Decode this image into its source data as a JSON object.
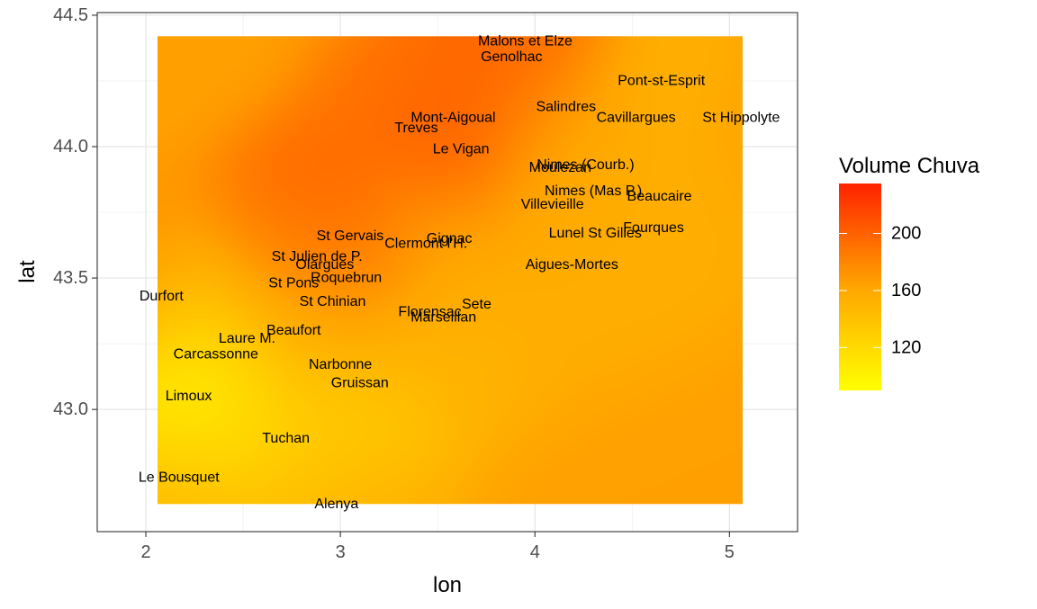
{
  "chart_data": {
    "type": "heatmap",
    "title": "",
    "xlabel": "lon",
    "ylabel": "lat",
    "xlim": [
      1.75,
      5.35
    ],
    "ylim": [
      42.535,
      44.51
    ],
    "x_ticks": [
      2,
      3,
      4,
      5
    ],
    "y_ticks": [
      43.0,
      43.5,
      44.0,
      44.5
    ],
    "x_tick_labels": [
      "2",
      "3",
      "4",
      "5"
    ],
    "y_tick_labels": [
      "43.0",
      "43.5",
      "44.0",
      "44.5"
    ],
    "grid": true,
    "surface_extent": {
      "lon": [
        2.06,
        5.07
      ],
      "lat": [
        42.64,
        44.42
      ]
    },
    "legend": {
      "title": "Volume Chuva",
      "placement": "right",
      "range": [
        90,
        235
      ],
      "ticks": [
        120,
        160,
        200
      ],
      "tick_labels": [
        "120",
        "160",
        "200"
      ],
      "colors": [
        "#ffff00",
        "#ffa500",
        "#ff2200"
      ]
    },
    "background_value": 165,
    "stations": [
      {
        "name": "Malons et Elze",
        "lon": 3.95,
        "lat": 44.4,
        "value": 195
      },
      {
        "name": "Genolhac",
        "lon": 3.88,
        "lat": 44.34,
        "value": 205
      },
      {
        "name": "Pont-st-Esprit",
        "lon": 4.65,
        "lat": 44.25,
        "value": 150
      },
      {
        "name": "Salindres",
        "lon": 4.16,
        "lat": 44.15,
        "value": 175
      },
      {
        "name": "Mont-Aigoual",
        "lon": 3.58,
        "lat": 44.11,
        "value": 190
      },
      {
        "name": "Cavillargues",
        "lon": 4.52,
        "lat": 44.11,
        "value": 150
      },
      {
        "name": "St Hippolyte",
        "lon": 5.06,
        "lat": 44.11,
        "value": 165
      },
      {
        "name": "Treves",
        "lon": 3.39,
        "lat": 44.07,
        "value": 190
      },
      {
        "name": "Le Vigan",
        "lon": 3.62,
        "lat": 43.99,
        "value": 225
      },
      {
        "name": "Nimes (Courb.)",
        "lon": 4.26,
        "lat": 43.93,
        "value": 160
      },
      {
        "name": "Moulezan",
        "lon": 4.13,
        "lat": 43.92,
        "value": 160
      },
      {
        "name": "Nimes (Mas P.)",
        "lon": 4.3,
        "lat": 43.83,
        "value": 155
      },
      {
        "name": "Beaucaire",
        "lon": 4.64,
        "lat": 43.81,
        "value": 155
      },
      {
        "name": "Villevieille",
        "lon": 4.09,
        "lat": 43.78,
        "value": 160
      },
      {
        "name": "Fourques",
        "lon": 4.61,
        "lat": 43.69,
        "value": 155
      },
      {
        "name": "St Gervais",
        "lon": 3.05,
        "lat": 43.66,
        "value": 215
      },
      {
        "name": "Lunel St Gilles",
        "lon": 4.31,
        "lat": 43.67,
        "value": 155
      },
      {
        "name": "Gignac",
        "lon": 3.56,
        "lat": 43.65,
        "value": 160
      },
      {
        "name": "Clermont l'H.",
        "lon": 3.44,
        "lat": 43.63,
        "value": 165
      },
      {
        "name": "St Julien de P.",
        "lon": 2.88,
        "lat": 43.58,
        "value": 195
      },
      {
        "name": "Olargues",
        "lon": 2.92,
        "lat": 43.55,
        "value": 190
      },
      {
        "name": "Aigues-Mortes",
        "lon": 4.19,
        "lat": 43.55,
        "value": 155
      },
      {
        "name": "Roquebrun",
        "lon": 3.03,
        "lat": 43.5,
        "value": 180
      },
      {
        "name": "St Pons",
        "lon": 2.76,
        "lat": 43.48,
        "value": 185
      },
      {
        "name": "Durfort",
        "lon": 2.08,
        "lat": 43.43,
        "value": 175
      },
      {
        "name": "St Chinian",
        "lon": 2.96,
        "lat": 43.41,
        "value": 165
      },
      {
        "name": "Sete",
        "lon": 3.7,
        "lat": 43.4,
        "value": 155
      },
      {
        "name": "Florensac",
        "lon": 3.46,
        "lat": 43.37,
        "value": 150
      },
      {
        "name": "Marseillan",
        "lon": 3.53,
        "lat": 43.35,
        "value": 150
      },
      {
        "name": "Beaufort",
        "lon": 2.76,
        "lat": 43.3,
        "value": 140
      },
      {
        "name": "Laure M.",
        "lon": 2.52,
        "lat": 43.27,
        "value": 115
      },
      {
        "name": "Carcassonne",
        "lon": 2.36,
        "lat": 43.21,
        "value": 105
      },
      {
        "name": "Narbonne",
        "lon": 3.0,
        "lat": 43.17,
        "value": 130
      },
      {
        "name": "Gruissan",
        "lon": 3.1,
        "lat": 43.1,
        "value": 135
      },
      {
        "name": "Limoux",
        "lon": 2.22,
        "lat": 43.05,
        "value": 90
      },
      {
        "name": "Tuchan",
        "lon": 2.72,
        "lat": 42.89,
        "value": 125
      },
      {
        "name": "Le Bousquet",
        "lon": 2.17,
        "lat": 42.74,
        "value": 145
      },
      {
        "name": "Alenya",
        "lon": 2.98,
        "lat": 42.64,
        "value": 150
      }
    ]
  }
}
